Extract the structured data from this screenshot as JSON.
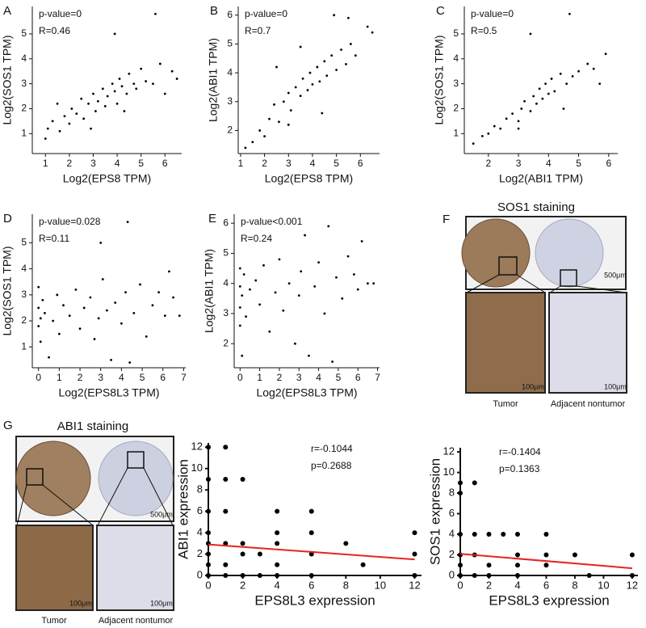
{
  "chart_data": [
    {
      "type": "scatter",
      "panel_label": "A",
      "x_label": "Log2(EPS8 TPM)",
      "y_label": "Log2(SOS1 TPM)",
      "annotations": [
        "p-value=0",
        "R=0.46"
      ],
      "color": "#000000",
      "xlim": [
        0.45,
        6.7
      ],
      "ylim": [
        0.2,
        6.1
      ],
      "xticks": [
        1,
        2,
        3,
        4,
        5,
        6
      ],
      "yticks": [
        1,
        2,
        3,
        4,
        5
      ],
      "x": [
        1.0,
        1.1,
        1.3,
        1.6,
        1.8,
        2.0,
        2.1,
        2.3,
        2.5,
        2.6,
        2.8,
        3.0,
        3.1,
        3.2,
        3.4,
        3.5,
        3.6,
        3.8,
        3.9,
        4.0,
        4.1,
        4.2,
        4.4,
        4.5,
        4.7,
        4.8,
        5.0,
        5.2,
        5.5,
        5.6,
        5.8,
        6.0,
        6.3,
        6.5,
        3.9,
        2.9,
        1.5,
        4.3
      ],
      "y": [
        0.8,
        1.2,
        1.5,
        1.1,
        1.7,
        1.4,
        2.0,
        1.8,
        2.4,
        1.6,
        2.2,
        2.6,
        1.9,
        2.3,
        2.8,
        2.1,
        2.5,
        3.0,
        2.7,
        2.2,
        3.2,
        2.9,
        2.6,
        3.4,
        3.0,
        2.8,
        3.6,
        3.1,
        3.0,
        5.8,
        3.8,
        2.6,
        3.5,
        3.2,
        5.0,
        1.2,
        2.2,
        1.9
      ]
    },
    {
      "type": "scatter",
      "panel_label": "B",
      "x_label": "Log2(EPS8 TPM)",
      "y_label": "Log2(ABI1 TPM)",
      "annotations": [
        "p-value=0",
        "R=0.7"
      ],
      "color": "#000000",
      "xlim": [
        0.9,
        6.8
      ],
      "ylim": [
        1.2,
        6.3
      ],
      "xticks": [
        1,
        2,
        3,
        4,
        5,
        6
      ],
      "yticks": [
        2,
        3,
        4,
        5,
        6
      ],
      "x": [
        1.2,
        1.5,
        1.8,
        2.0,
        2.2,
        2.4,
        2.6,
        2.8,
        3.0,
        3.1,
        3.3,
        3.5,
        3.6,
        3.8,
        3.9,
        4.0,
        4.2,
        4.3,
        4.5,
        4.6,
        4.8,
        5.0,
        5.2,
        5.4,
        5.6,
        5.8,
        6.3,
        6.5,
        5.5,
        4.9,
        3.5,
        2.5,
        4.4,
        3.0
      ],
      "y": [
        1.4,
        1.6,
        2.0,
        1.8,
        2.4,
        2.9,
        2.3,
        3.0,
        3.3,
        2.7,
        3.5,
        3.2,
        3.8,
        3.4,
        4.0,
        3.6,
        4.2,
        3.7,
        4.4,
        3.9,
        4.6,
        4.1,
        4.8,
        4.3,
        5.0,
        4.6,
        5.6,
        5.4,
        5.9,
        6.0,
        4.9,
        4.2,
        2.6,
        2.2
      ]
    },
    {
      "type": "scatter",
      "panel_label": "C",
      "x_label": "Log2(ABI1 TPM)",
      "y_label": "Log2(SOS1 TPM)",
      "annotations": [
        "p-value=0",
        "R=0.5"
      ],
      "color": "#000000",
      "xlim": [
        1.2,
        6.3
      ],
      "ylim": [
        0.2,
        6.1
      ],
      "xticks": [
        2,
        3,
        4,
        5,
        6
      ],
      "yticks": [
        1,
        2,
        3,
        4,
        5
      ],
      "x": [
        1.5,
        1.8,
        2.0,
        2.2,
        2.4,
        2.6,
        2.8,
        3.0,
        3.1,
        3.2,
        3.4,
        3.5,
        3.6,
        3.7,
        3.8,
        3.9,
        4.0,
        4.1,
        4.2,
        4.4,
        4.6,
        4.8,
        5.0,
        5.3,
        5.5,
        5.7,
        5.9,
        4.7,
        3.4,
        3.0,
        4.5
      ],
      "y": [
        0.6,
        0.9,
        1.0,
        1.3,
        1.2,
        1.6,
        1.8,
        1.5,
        2.0,
        2.3,
        1.9,
        2.5,
        2.2,
        2.8,
        2.4,
        3.0,
        2.6,
        3.2,
        2.7,
        3.4,
        3.0,
        3.3,
        3.5,
        3.8,
        3.6,
        3.0,
        4.2,
        5.8,
        5.0,
        1.2,
        2.0
      ]
    },
    {
      "type": "scatter",
      "panel_label": "D",
      "x_label": "Log2(EPS8L3 TPM)",
      "y_label": "Log2(SOS1 TPM)",
      "annotations": [
        "p-value=0.028",
        "R=0.11"
      ],
      "color": "#000000",
      "xlim": [
        -0.3,
        7.1
      ],
      "ylim": [
        0.2,
        6.1
      ],
      "xticks": [
        0,
        1,
        2,
        3,
        4,
        5,
        6,
        7
      ],
      "yticks": [
        1,
        2,
        3,
        4,
        5
      ],
      "x": [
        0,
        0,
        0,
        0.1,
        0.1,
        0.2,
        0.3,
        0.5,
        0.7,
        0.9,
        1.0,
        1.2,
        1.5,
        1.8,
        2.0,
        2.2,
        2.5,
        2.7,
        2.9,
        3.0,
        3.1,
        3.3,
        3.5,
        3.7,
        4.0,
        4.2,
        4.3,
        4.4,
        4.6,
        4.9,
        5.2,
        5.5,
        5.8,
        6.1,
        6.3,
        6.5,
        6.8
      ],
      "y": [
        2.5,
        1.8,
        3.3,
        2.1,
        1.2,
        2.8,
        2.3,
        0.6,
        2.0,
        3.0,
        1.5,
        2.6,
        2.2,
        3.2,
        1.7,
        2.5,
        2.9,
        1.3,
        2.1,
        5.0,
        3.6,
        2.4,
        0.5,
        2.7,
        1.9,
        3.1,
        5.8,
        0.4,
        2.3,
        3.4,
        1.4,
        2.6,
        3.1,
        2.2,
        3.9,
        2.9,
        2.2
      ]
    },
    {
      "type": "scatter",
      "panel_label": "E",
      "x_label": "Log2(EPS8L3 TPM)",
      "y_label": "Log2(ABI1 TPM)",
      "annotations": [
        "p-value<0.001",
        "R=0.24"
      ],
      "color": "#000000",
      "xlim": [
        -0.3,
        7.1
      ],
      "ylim": [
        1.2,
        6.3
      ],
      "xticks": [
        0,
        1,
        2,
        3,
        4,
        5,
        6,
        7
      ],
      "yticks": [
        2,
        3,
        4,
        5,
        6
      ],
      "x": [
        0,
        0,
        0,
        0,
        0.1,
        0.1,
        0.2,
        0.3,
        0.5,
        0.8,
        1.0,
        1.2,
        1.5,
        1.8,
        2.0,
        2.2,
        2.5,
        2.8,
        3.0,
        3.1,
        3.3,
        3.5,
        3.8,
        4.0,
        4.3,
        4.5,
        4.7,
        4.9,
        5.2,
        5.5,
        5.8,
        6.0,
        6.2,
        6.5,
        6.8
      ],
      "y": [
        3.9,
        3.2,
        4.5,
        2.6,
        1.6,
        3.6,
        4.3,
        2.9,
        3.8,
        4.1,
        3.3,
        4.6,
        2.4,
        3.7,
        4.8,
        3.1,
        4.0,
        2.0,
        3.6,
        4.4,
        5.6,
        1.6,
        3.9,
        4.7,
        3.0,
        5.9,
        1.4,
        4.2,
        3.5,
        4.9,
        4.3,
        3.8,
        5.4,
        4.0,
        4.0
      ]
    },
    {
      "type": "scatter",
      "x_label": "EPS8L3 expression",
      "y_label": "ABI1 expression",
      "annotations": [
        "r=-0.1044",
        "p=0.2688"
      ],
      "color": "#000000",
      "xlim": [
        0,
        12.4
      ],
      "ylim": [
        0,
        12.4
      ],
      "xticks": [
        0,
        2,
        4,
        6,
        8,
        10,
        12
      ],
      "yticks": [
        0,
        2,
        4,
        6,
        8,
        10,
        12
      ],
      "x": [
        0,
        0,
        0,
        0,
        0,
        0,
        0,
        0,
        1,
        1,
        1,
        1,
        1,
        1,
        2,
        2,
        2,
        2,
        3,
        3,
        4,
        4,
        4,
        4,
        4,
        6,
        6,
        6,
        6,
        8,
        9,
        12,
        12,
        12
      ],
      "y": [
        12,
        9,
        6,
        4,
        3,
        2,
        1,
        0,
        12,
        9,
        6,
        3,
        1,
        0,
        9,
        3,
        2,
        0,
        2,
        0,
        6,
        4,
        3,
        1,
        0,
        6,
        4,
        2,
        0,
        3,
        1,
        4,
        2,
        0
      ],
      "trend": {
        "color": "#e8231f",
        "x": [
          0,
          12
        ],
        "y": [
          2.9,
          1.5
        ]
      }
    },
    {
      "type": "scatter",
      "x_label": "EPS8L3 expression",
      "y_label": "SOS1 expression",
      "annotations": [
        "r=-0.1404",
        "p=0.1363"
      ],
      "color": "#000000",
      "xlim": [
        0,
        12.4
      ],
      "ylim": [
        0,
        12.4
      ],
      "xticks": [
        0,
        2,
        4,
        6,
        8,
        10,
        12
      ],
      "yticks": [
        0,
        2,
        4,
        6,
        8,
        10,
        12
      ],
      "x": [
        0,
        0,
        0,
        0,
        0,
        0,
        1,
        1,
        1,
        1,
        2,
        2,
        2,
        3,
        4,
        4,
        4,
        4,
        6,
        6,
        6,
        8,
        9,
        12,
        12
      ],
      "y": [
        9,
        8,
        4,
        2,
        1,
        0,
        9,
        4,
        2,
        0,
        4,
        1,
        0,
        4,
        4,
        2,
        1,
        0,
        4,
        2,
        1,
        2,
        0,
        2,
        0
      ],
      "trend": {
        "color": "#e8231f",
        "x": [
          0,
          12
        ],
        "y": [
          2.1,
          0.7
        ]
      }
    }
  ],
  "staining_panels": [
    {
      "label": "F",
      "title": "SOS1 staining",
      "scale_bars": [
        "500μm",
        "100μm",
        "100μm"
      ],
      "captions": [
        "Tumor",
        "Adjacent nontumor"
      ]
    },
    {
      "label": "G",
      "title": "ABI1 staining",
      "scale_bars": [
        "500μm",
        "100μm",
        "100μm"
      ],
      "captions": [
        "Tumor",
        "Adjacent nontumor"
      ]
    }
  ]
}
